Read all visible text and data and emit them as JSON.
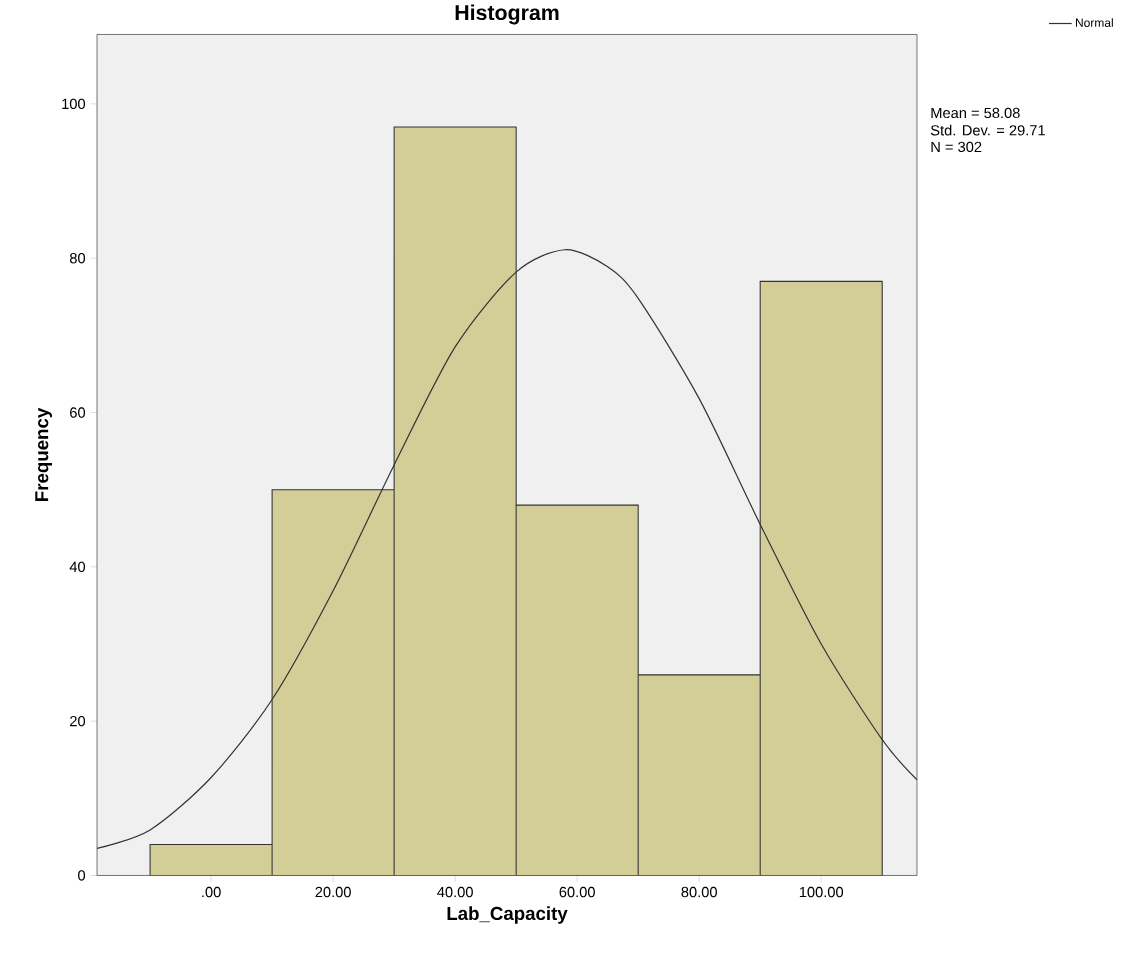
{
  "chart_data": {
    "type": "histogram",
    "title": "Histogram",
    "xlabel": "Lab_Capacity",
    "ylabel": "Frequency",
    "bins": [
      -10,
      10,
      30,
      50,
      70,
      90,
      110
    ],
    "values": [
      4,
      50,
      97,
      48,
      26,
      77
    ],
    "color": "#d3ce97",
    "series": [
      {
        "name": "Normal",
        "type": "line",
        "color": "#333333",
        "x": [
          -18.7,
          -10,
          0,
          10,
          20,
          30,
          40,
          50,
          58,
          65,
          70,
          80,
          90,
          100,
          110,
          115.7
        ],
        "values": [
          3.5,
          5.9,
          12.7,
          22.8,
          36.9,
          53.2,
          68.5,
          78.2,
          81.1,
          78.9,
          74.8,
          61.8,
          45.5,
          30.0,
          17.6,
          12.4
        ]
      }
    ],
    "xlim": [
      -18.7,
      115.7
    ],
    "ylim": [
      0,
      109
    ],
    "xticks": [
      {
        "value": 0,
        "label": ".00"
      },
      {
        "value": 20,
        "label": "20.00"
      },
      {
        "value": 40,
        "label": "40.00"
      },
      {
        "value": 60,
        "label": "60.00"
      },
      {
        "value": 80,
        "label": "80.00"
      },
      {
        "value": 100,
        "label": "100.00"
      }
    ],
    "yticks": [
      0,
      20,
      40,
      60,
      80,
      100
    ],
    "annotations": [
      "Mean = 58.08",
      "Std. Dev. = 29.71",
      "N = 302"
    ],
    "legend": "top right",
    "grid": false
  }
}
